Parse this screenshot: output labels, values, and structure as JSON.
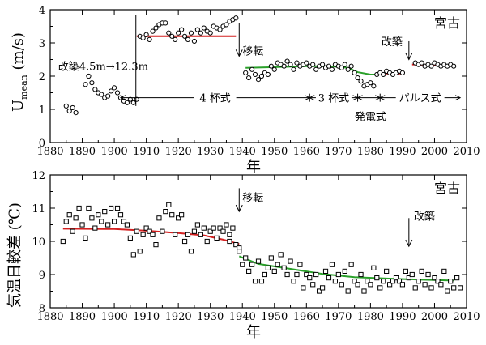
{
  "chart_data": [
    {
      "type": "scatter",
      "title": "",
      "station_label": "宮古",
      "xlabel": "年",
      "ylabel": "U",
      "ylabel_sub": "mean",
      "ylabel_unit": " (m/s)",
      "xlim": [
        1880,
        2010
      ],
      "ylim": [
        0,
        4
      ],
      "x_ticks": [
        1880,
        1890,
        1900,
        1910,
        1920,
        1930,
        1940,
        1950,
        1960,
        1970,
        1980,
        1990,
        2000,
        2010
      ],
      "y_ticks": [
        0,
        1,
        2,
        3,
        4
      ],
      "grid": false,
      "points": [
        [
          1885,
          1.1
        ],
        [
          1886,
          0.95
        ],
        [
          1887,
          1.05
        ],
        [
          1888,
          0.9
        ],
        [
          1891,
          1.75
        ],
        [
          1892,
          2.0
        ],
        [
          1893,
          1.8
        ],
        [
          1894,
          1.6
        ],
        [
          1895,
          1.5
        ],
        [
          1896,
          1.45
        ],
        [
          1897,
          1.35
        ],
        [
          1898,
          1.4
        ],
        [
          1899,
          1.55
        ],
        [
          1900,
          1.65
        ],
        [
          1901,
          1.5
        ],
        [
          1902,
          1.35
        ],
        [
          1903,
          1.25
        ],
        [
          1904,
          1.2
        ],
        [
          1905,
          1.3
        ],
        [
          1906,
          1.2
        ],
        [
          1907,
          1.3
        ],
        [
          1908,
          3.2
        ],
        [
          1909,
          3.15
        ],
        [
          1910,
          3.25
        ],
        [
          1911,
          3.1
        ],
        [
          1912,
          3.35
        ],
        [
          1913,
          3.45
        ],
        [
          1914,
          3.55
        ],
        [
          1915,
          3.6
        ],
        [
          1916,
          3.6
        ],
        [
          1917,
          3.3
        ],
        [
          1918,
          3.2
        ],
        [
          1919,
          3.1
        ],
        [
          1920,
          3.3
        ],
        [
          1921,
          3.4
        ],
        [
          1922,
          3.2
        ],
        [
          1923,
          3.1
        ],
        [
          1924,
          3.3
        ],
        [
          1925,
          3.05
        ],
        [
          1926,
          3.4
        ],
        [
          1927,
          3.3
        ],
        [
          1928,
          3.45
        ],
        [
          1929,
          3.35
        ],
        [
          1930,
          3.3
        ],
        [
          1931,
          3.5
        ],
        [
          1932,
          3.45
        ],
        [
          1933,
          3.4
        ],
        [
          1934,
          3.5
        ],
        [
          1935,
          3.55
        ],
        [
          1936,
          3.65
        ],
        [
          1937,
          3.7
        ],
        [
          1938,
          3.75
        ],
        [
          1941,
          2.1
        ],
        [
          1942,
          1.95
        ],
        [
          1943,
          2.2
        ],
        [
          1944,
          2.05
        ],
        [
          1945,
          1.9
        ],
        [
          1946,
          2.0
        ],
        [
          1947,
          2.1
        ],
        [
          1948,
          2.05
        ],
        [
          1949,
          2.3
        ],
        [
          1950,
          2.2
        ],
        [
          1951,
          2.4
        ],
        [
          1952,
          2.35
        ],
        [
          1953,
          2.3
        ],
        [
          1954,
          2.45
        ],
        [
          1955,
          2.35
        ],
        [
          1956,
          2.2
        ],
        [
          1957,
          2.4
        ],
        [
          1958,
          2.3
        ],
        [
          1959,
          2.35
        ],
        [
          1960,
          2.4
        ],
        [
          1961,
          2.3
        ],
        [
          1962,
          2.35
        ],
        [
          1963,
          2.2
        ],
        [
          1964,
          2.3
        ],
        [
          1965,
          2.35
        ],
        [
          1966,
          2.25
        ],
        [
          1967,
          2.3
        ],
        [
          1968,
          2.2
        ],
        [
          1969,
          2.35
        ],
        [
          1970,
          2.3
        ],
        [
          1971,
          2.25
        ],
        [
          1972,
          2.35
        ],
        [
          1973,
          2.2
        ],
        [
          1974,
          2.3
        ],
        [
          1975,
          2.1
        ],
        [
          1976,
          1.95
        ],
        [
          1977,
          1.85
        ],
        [
          1978,
          1.7
        ],
        [
          1979,
          1.75
        ],
        [
          1980,
          1.8
        ],
        [
          1981,
          1.7
        ],
        [
          1982,
          2.05
        ],
        [
          1983,
          2.1
        ],
        [
          1984,
          2.05
        ],
        [
          1985,
          2.15
        ],
        [
          1986,
          2.1
        ],
        [
          1987,
          2.05
        ],
        [
          1988,
          2.1
        ],
        [
          1989,
          2.15
        ],
        [
          1990,
          2.1
        ],
        [
          1994,
          2.4
        ],
        [
          1995,
          2.35
        ],
        [
          1996,
          2.4
        ],
        [
          1997,
          2.3
        ],
        [
          1998,
          2.35
        ],
        [
          1999,
          2.3
        ],
        [
          2000,
          2.4
        ],
        [
          2001,
          2.35
        ],
        [
          2002,
          2.3
        ],
        [
          2003,
          2.35
        ],
        [
          2004,
          2.3
        ],
        [
          2005,
          2.35
        ],
        [
          2006,
          2.3
        ]
      ],
      "fit_lines": [
        {
          "color": "#d42020",
          "points": [
            [
              1907,
              3.2
            ],
            [
              1938,
              3.2
            ]
          ]
        },
        {
          "color": "#2aa02a",
          "points": [
            [
              1941,
              2.25
            ],
            [
              1950,
              2.27
            ],
            [
              1960,
              2.3
            ],
            [
              1966,
              2.3
            ],
            [
              1970,
              2.28
            ],
            [
              1973,
              2.25
            ],
            [
              1976,
              2.12
            ],
            [
              1980,
              2.05
            ],
            [
              1983,
              2.05
            ]
          ]
        },
        {
          "color": "#d42020",
          "points": [
            [
              1983,
              2.08
            ],
            [
              1990,
              2.08
            ]
          ]
        },
        {
          "color": "#d42020",
          "points": [
            [
              1993,
              2.35
            ],
            [
              2006,
              2.33
            ]
          ]
        }
      ],
      "annotations": {
        "top_change": "改築4.5m→12.3m",
        "relocation": "移転",
        "rebuild": "改築",
        "period_4cup": "4 杯式",
        "period_3cup": "3 杯式",
        "period_pulse": "パルス式",
        "generator": "発電式"
      },
      "markers": {
        "instrument_change_year": 1907,
        "relocation_year": 1939,
        "rebuild_year": 1992,
        "period_row_y": 1.35,
        "period_start": 1902,
        "period_boundaries": [
          1961,
          1976,
          1983
        ],
        "period_end": 2008
      }
    },
    {
      "type": "scatter",
      "title": "",
      "station_label": "宮古",
      "xlabel": "年",
      "ylabel": "気温日較差 (℃)",
      "xlim": [
        1880,
        2010
      ],
      "ylim": [
        8,
        12
      ],
      "x_ticks": [
        1880,
        1890,
        1900,
        1910,
        1920,
        1930,
        1940,
        1950,
        1960,
        1970,
        1980,
        1990,
        2000,
        2010
      ],
      "y_ticks": [
        8,
        9,
        10,
        11,
        12
      ],
      "grid": false,
      "points": [
        [
          1884,
          10.0
        ],
        [
          1885,
          10.6
        ],
        [
          1886,
          10.8
        ],
        [
          1887,
          10.3
        ],
        [
          1888,
          10.7
        ],
        [
          1889,
          11.0
        ],
        [
          1890,
          10.5
        ],
        [
          1891,
          10.1
        ],
        [
          1892,
          11.0
        ],
        [
          1893,
          10.7
        ],
        [
          1894,
          10.4
        ],
        [
          1895,
          10.8
        ],
        [
          1896,
          10.6
        ],
        [
          1897,
          10.9
        ],
        [
          1898,
          10.5
        ],
        [
          1899,
          11.0
        ],
        [
          1900,
          10.6
        ],
        [
          1901,
          11.0
        ],
        [
          1902,
          10.8
        ],
        [
          1903,
          10.6
        ],
        [
          1904,
          10.5
        ],
        [
          1905,
          10.1
        ],
        [
          1906,
          9.6
        ],
        [
          1907,
          10.3
        ],
        [
          1908,
          9.7
        ],
        [
          1909,
          10.2
        ],
        [
          1910,
          10.4
        ],
        [
          1911,
          10.3
        ],
        [
          1912,
          10.2
        ],
        [
          1913,
          9.9
        ],
        [
          1914,
          10.7
        ],
        [
          1915,
          10.3
        ],
        [
          1916,
          10.9
        ],
        [
          1917,
          11.1
        ],
        [
          1918,
          10.8
        ],
        [
          1919,
          10.2
        ],
        [
          1920,
          10.7
        ],
        [
          1921,
          10.8
        ],
        [
          1922,
          10.0
        ],
        [
          1923,
          10.2
        ],
        [
          1924,
          9.7
        ],
        [
          1925,
          10.3
        ],
        [
          1926,
          10.5
        ],
        [
          1927,
          10.2
        ],
        [
          1928,
          10.4
        ],
        [
          1929,
          10.0
        ],
        [
          1930,
          10.3
        ],
        [
          1931,
          10.4
        ],
        [
          1932,
          10.1
        ],
        [
          1933,
          10.4
        ],
        [
          1934,
          10.3
        ],
        [
          1935,
          10.5
        ],
        [
          1936,
          10.0
        ],
        [
          1937,
          10.4
        ],
        [
          1938,
          9.9
        ],
        [
          1939,
          9.8
        ],
        [
          1940,
          9.3
        ],
        [
          1941,
          9.5
        ],
        [
          1942,
          9.1
        ],
        [
          1943,
          9.3
        ],
        [
          1944,
          8.8
        ],
        [
          1945,
          9.4
        ],
        [
          1946,
          8.8
        ],
        [
          1947,
          9.0
        ],
        [
          1948,
          9.2
        ],
        [
          1949,
          9.5
        ],
        [
          1950,
          9.1
        ],
        [
          1951,
          9.3
        ],
        [
          1952,
          9.6
        ],
        [
          1953,
          9.2
        ],
        [
          1954,
          9.0
        ],
        [
          1955,
          9.4
        ],
        [
          1956,
          8.8
        ],
        [
          1957,
          9.0
        ],
        [
          1958,
          9.3
        ],
        [
          1959,
          8.6
        ],
        [
          1960,
          9.0
        ],
        [
          1961,
          8.9
        ],
        [
          1962,
          8.7
        ],
        [
          1963,
          9.0
        ],
        [
          1964,
          8.5
        ],
        [
          1965,
          8.6
        ],
        [
          1966,
          9.1
        ],
        [
          1967,
          8.9
        ],
        [
          1968,
          9.3
        ],
        [
          1969,
          8.8
        ],
        [
          1970,
          9.0
        ],
        [
          1971,
          8.7
        ],
        [
          1972,
          9.1
        ],
        [
          1973,
          8.5
        ],
        [
          1974,
          9.3
        ],
        [
          1975,
          8.8
        ],
        [
          1976,
          8.7
        ],
        [
          1977,
          9.0
        ],
        [
          1978,
          8.5
        ],
        [
          1979,
          8.8
        ],
        [
          1980,
          8.7
        ],
        [
          1981,
          9.2
        ],
        [
          1982,
          8.9
        ],
        [
          1983,
          8.6
        ],
        [
          1984,
          8.8
        ],
        [
          1985,
          9.1
        ],
        [
          1986,
          8.7
        ],
        [
          1987,
          8.8
        ],
        [
          1988,
          8.9
        ],
        [
          1989,
          8.8
        ],
        [
          1990,
          8.7
        ],
        [
          1991,
          9.1
        ],
        [
          1992,
          8.9
        ],
        [
          1993,
          9.0
        ],
        [
          1994,
          8.6
        ],
        [
          1995,
          8.8
        ],
        [
          1996,
          9.1
        ],
        [
          1997,
          8.7
        ],
        [
          1998,
          9.0
        ],
        [
          1999,
          8.6
        ],
        [
          2000,
          8.9
        ],
        [
          2001,
          8.8
        ],
        [
          2002,
          8.7
        ],
        [
          2003,
          9.1
        ],
        [
          2004,
          8.5
        ],
        [
          2005,
          8.8
        ],
        [
          2006,
          8.6
        ],
        [
          2007,
          8.9
        ],
        [
          2008,
          8.6
        ],
        [
          1936,
          10.2
        ],
        [
          1939,
          9.7
        ]
      ],
      "fit_lines": [
        {
          "color": "#d42020",
          "points": [
            [
              1884,
              10.38
            ],
            [
              1900,
              10.37
            ],
            [
              1910,
              10.32
            ],
            [
              1920,
              10.25
            ],
            [
              1928,
              10.18
            ],
            [
              1934,
              10.05
            ],
            [
              1939,
              9.92
            ]
          ]
        },
        {
          "color": "#2aa02a",
          "points": [
            [
              1939,
              9.55
            ],
            [
              1945,
              9.32
            ],
            [
              1955,
              9.17
            ],
            [
              1965,
              9.02
            ],
            [
              1975,
              8.92
            ],
            [
              1985,
              8.88
            ],
            [
              1995,
              8.85
            ],
            [
              2006,
              8.82
            ]
          ]
        }
      ],
      "annotations": {
        "relocation": "移転",
        "rebuild": "改築"
      },
      "markers": {
        "relocation_year": 1939,
        "rebuild_year": 1992
      }
    }
  ]
}
